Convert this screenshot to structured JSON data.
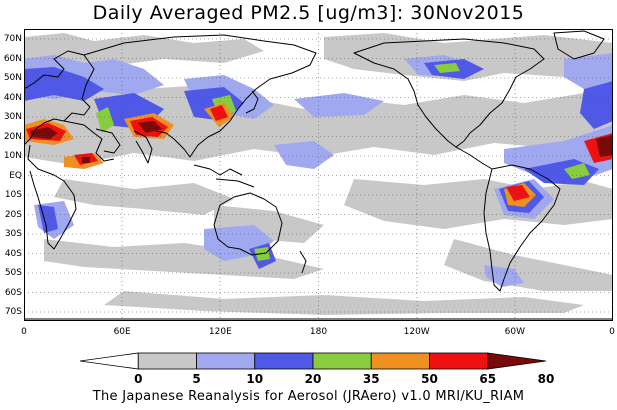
{
  "title": "Daily Averaged PM2.5 [ug/m3]: 30Nov2015",
  "credit": "The Japanese Reanalysis for Aerosol (JRAero) v1.0 MRI/KU_RIAM",
  "lat_labels": [
    "70N",
    "60N",
    "50N",
    "40N",
    "30N",
    "20N",
    "10N",
    "EQ",
    "10S",
    "20S",
    "30S",
    "40S",
    "50S",
    "60S",
    "70S"
  ],
  "lon_labels": [
    "0",
    "60E",
    "120E",
    "180",
    "120W",
    "60W",
    "0"
  ],
  "colorbar": {
    "ticks": [
      "0",
      "5",
      "10",
      "20",
      "35",
      "50",
      "65",
      "80"
    ],
    "colors": [
      "#ffffff",
      "#c8c8c8",
      "#a0a8f0",
      "#5058e8",
      "#88cc40",
      "#f09020",
      "#f01010",
      "#7a0a0a"
    ]
  }
}
